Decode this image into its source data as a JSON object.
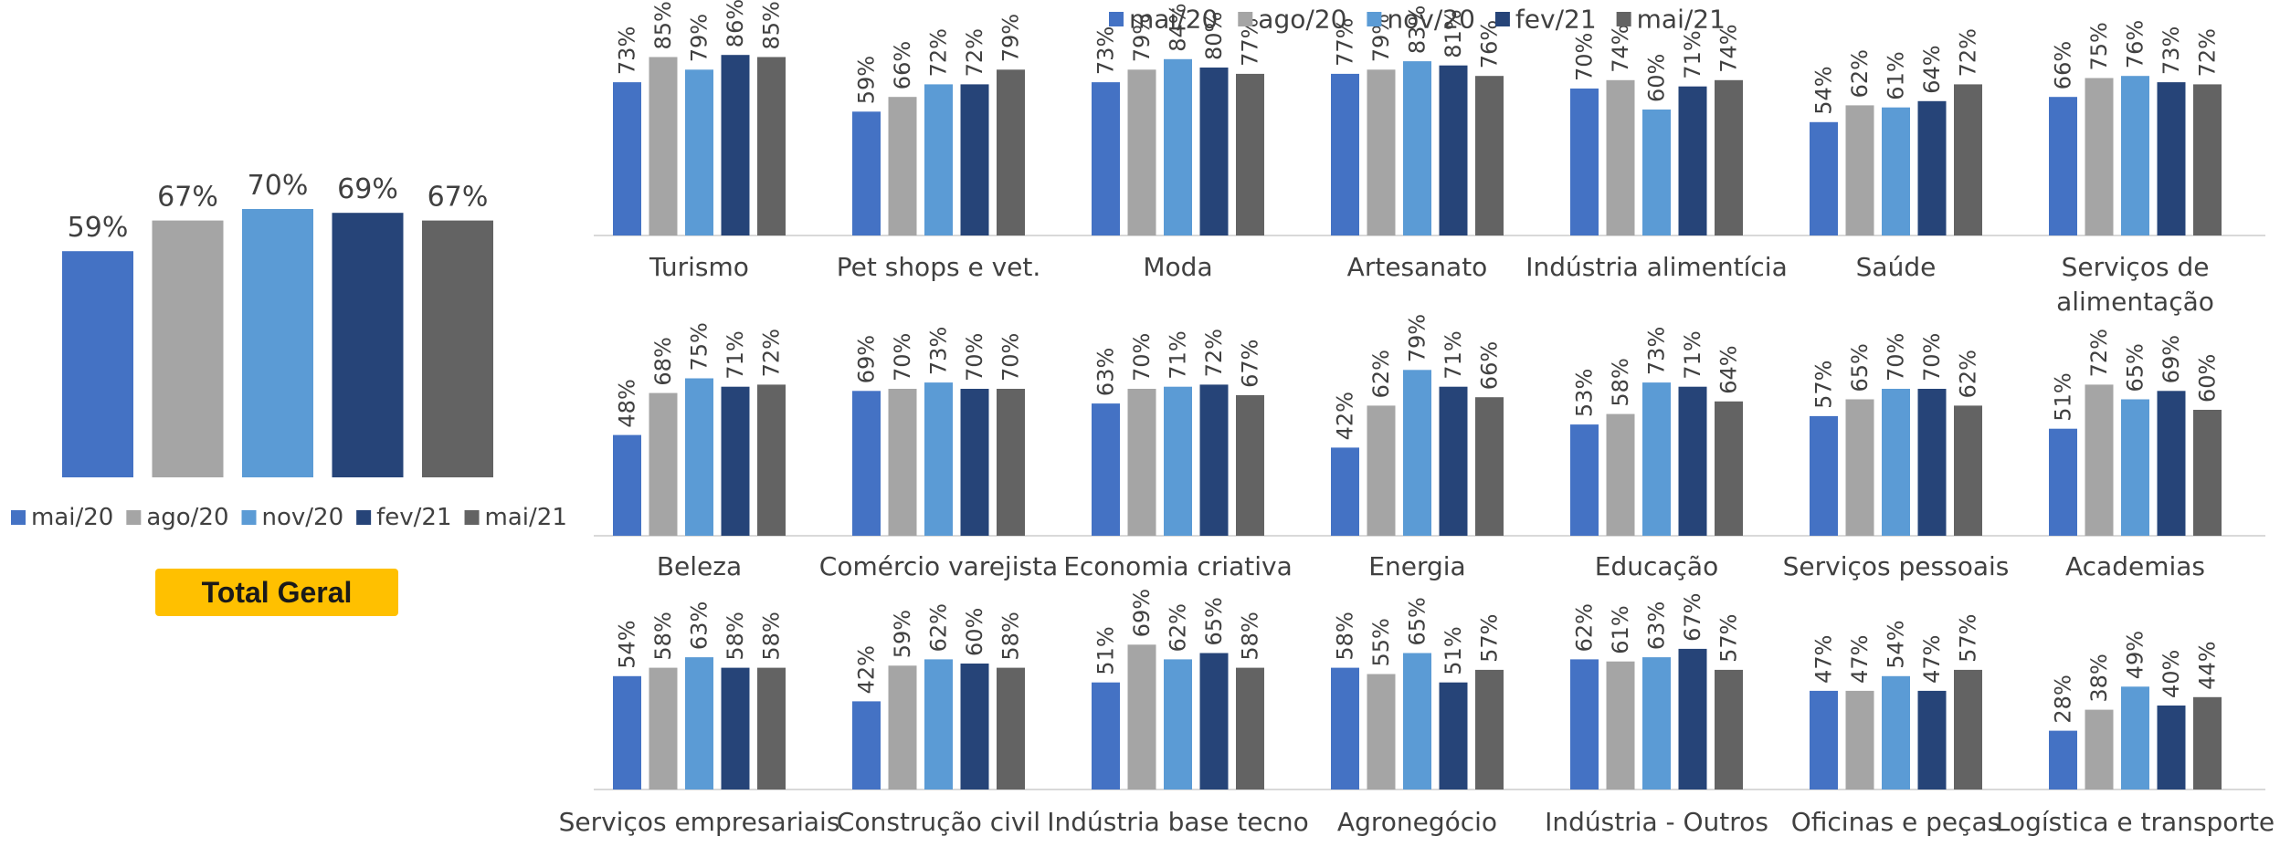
{
  "colors": {
    "mai20": "#4472C4",
    "ago20": "#A5A5A5",
    "nov20": "#5B9BD5",
    "fev21": "#264478",
    "mai21": "#636363",
    "badge": "#FFC000",
    "axis": "#D9D9D9"
  },
  "total_label": "Total Geral",
  "chart_data": [
    {
      "type": "bar",
      "title": "Total Geral",
      "categories": [
        "Total Geral"
      ],
      "series": [
        {
          "name": "mai/20",
          "values": [
            59
          ]
        },
        {
          "name": "ago/20",
          "values": [
            67
          ]
        },
        {
          "name": "nov/20",
          "values": [
            70
          ]
        },
        {
          "name": "fev/21",
          "values": [
            69
          ]
        },
        {
          "name": "mai/21",
          "values": [
            67
          ]
        }
      ],
      "value_labels": [
        "59%",
        "67%",
        "70%",
        "69%",
        "67%"
      ],
      "legend": "bottom",
      "ylim": [
        0,
        100
      ]
    },
    {
      "type": "bar",
      "legend": "top",
      "ylim": [
        0,
        100
      ],
      "series_names": [
        "mai/20",
        "ago/20",
        "nov/20",
        "fev/21",
        "mai/21"
      ],
      "categories": [
        "Turismo",
        "Pet shops e vet.",
        "Moda",
        "Artesanato",
        "Indústria alimentícia",
        "Saúde",
        "Serviços de alimentação",
        "Beleza",
        "Comércio varejista",
        "Economia criativa",
        "Energia",
        "Educação",
        "Serviços pessoais",
        "Academias",
        "Serviços empresariais",
        "Construção civil",
        "Indústria base tecno",
        "Agronegócio",
        "Indústria - Outros",
        "Oficinas e peças",
        "Logística e transporte"
      ],
      "groups": [
        {
          "label": "Turismo",
          "values": [
            73,
            85,
            79,
            86,
            85
          ]
        },
        {
          "label": "Pet shops e vet.",
          "values": [
            59,
            66,
            72,
            72,
            79
          ]
        },
        {
          "label": "Moda",
          "values": [
            73,
            79,
            84,
            80,
            77
          ]
        },
        {
          "label": "Artesanato",
          "values": [
            77,
            79,
            83,
            81,
            76
          ]
        },
        {
          "label": "Indústria alimentícia",
          "values": [
            70,
            74,
            60,
            71,
            74
          ]
        },
        {
          "label": "Saúde",
          "values": [
            54,
            62,
            61,
            64,
            72
          ]
        },
        {
          "label": "Serviços de alimentação",
          "values": [
            66,
            75,
            76,
            73,
            72
          ]
        },
        {
          "label": "Beleza",
          "values": [
            48,
            68,
            75,
            71,
            72
          ]
        },
        {
          "label": "Comércio varejista",
          "values": [
            69,
            70,
            73,
            70,
            70
          ]
        },
        {
          "label": "Economia criativa",
          "values": [
            63,
            70,
            71,
            72,
            67
          ]
        },
        {
          "label": "Energia",
          "values": [
            42,
            62,
            79,
            71,
            66
          ]
        },
        {
          "label": "Educação",
          "values": [
            53,
            58,
            73,
            71,
            64
          ]
        },
        {
          "label": "Serviços pessoais",
          "values": [
            57,
            65,
            70,
            70,
            62
          ]
        },
        {
          "label": "Academias",
          "values": [
            51,
            72,
            65,
            69,
            60
          ]
        },
        {
          "label": "Serviços empresariais",
          "values": [
            54,
            58,
            63,
            58,
            58
          ]
        },
        {
          "label": "Construção civil",
          "values": [
            42,
            59,
            62,
            60,
            58
          ]
        },
        {
          "label": "Indústria base tecno",
          "values": [
            51,
            69,
            62,
            65,
            58
          ]
        },
        {
          "label": "Agronegócio",
          "values": [
            58,
            55,
            65,
            51,
            57
          ]
        },
        {
          "label": "Indústria - Outros",
          "values": [
            62,
            61,
            63,
            67,
            57
          ]
        },
        {
          "label": "Oficinas e peças",
          "values": [
            47,
            47,
            54,
            47,
            57
          ]
        },
        {
          "label": "Logística e transporte",
          "values": [
            28,
            38,
            49,
            40,
            44
          ]
        }
      ]
    }
  ]
}
